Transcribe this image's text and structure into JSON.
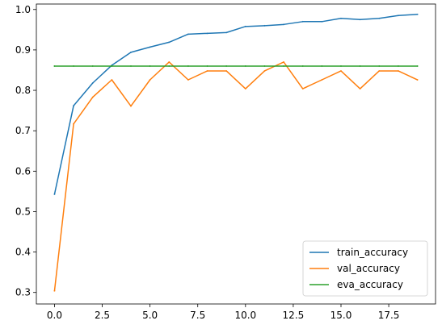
{
  "chart_data": {
    "type": "line",
    "title": "",
    "xlabel": "",
    "ylabel": "",
    "xlim": [
      -0.95,
      19.95
    ],
    "ylim": [
      0.2715,
      1.0135
    ],
    "xticks": [
      0.0,
      2.5,
      5.0,
      7.5,
      10.0,
      12.5,
      15.0,
      17.5
    ],
    "xtick_labels": [
      "0.0",
      "2.5",
      "5.0",
      "7.5",
      "10.0",
      "12.5",
      "15.0",
      "17.5"
    ],
    "yticks": [
      0.3,
      0.4,
      0.5,
      0.6,
      0.7,
      0.8,
      0.9,
      1.0
    ],
    "ytick_labels": [
      "0.3",
      "0.4",
      "0.5",
      "0.6",
      "0.7",
      "0.8",
      "0.9",
      "1.0"
    ],
    "grid": false,
    "legend_position": "lower-right",
    "x": [
      0,
      1,
      2,
      3,
      4,
      5,
      6,
      7,
      8,
      9,
      10,
      11,
      12,
      13,
      14,
      15,
      16,
      17,
      18,
      19
    ],
    "series": [
      {
        "name": "train_accuracy",
        "color": "#1f77b4",
        "values": [
          0.543,
          0.762,
          0.818,
          0.862,
          0.894,
          0.907,
          0.919,
          0.939,
          0.941,
          0.943,
          0.958,
          0.96,
          0.963,
          0.97,
          0.97,
          0.978,
          0.975,
          0.978,
          0.985,
          0.988
        ]
      },
      {
        "name": "val_accuracy",
        "color": "#ff7f0e",
        "values": [
          0.304,
          0.717,
          0.783,
          0.826,
          0.761,
          0.826,
          0.87,
          0.826,
          0.848,
          0.848,
          0.804,
          0.848,
          0.87,
          0.804,
          0.826,
          0.848,
          0.804,
          0.848,
          0.848,
          0.826
        ]
      },
      {
        "name": "eva_accuracy",
        "color": "#2ca02c",
        "values": [
          0.86,
          0.86,
          0.86,
          0.86,
          0.86,
          0.86,
          0.86,
          0.86,
          0.86,
          0.86,
          0.86,
          0.86,
          0.86,
          0.86,
          0.86,
          0.86,
          0.86,
          0.86,
          0.86,
          0.86
        ]
      }
    ]
  }
}
